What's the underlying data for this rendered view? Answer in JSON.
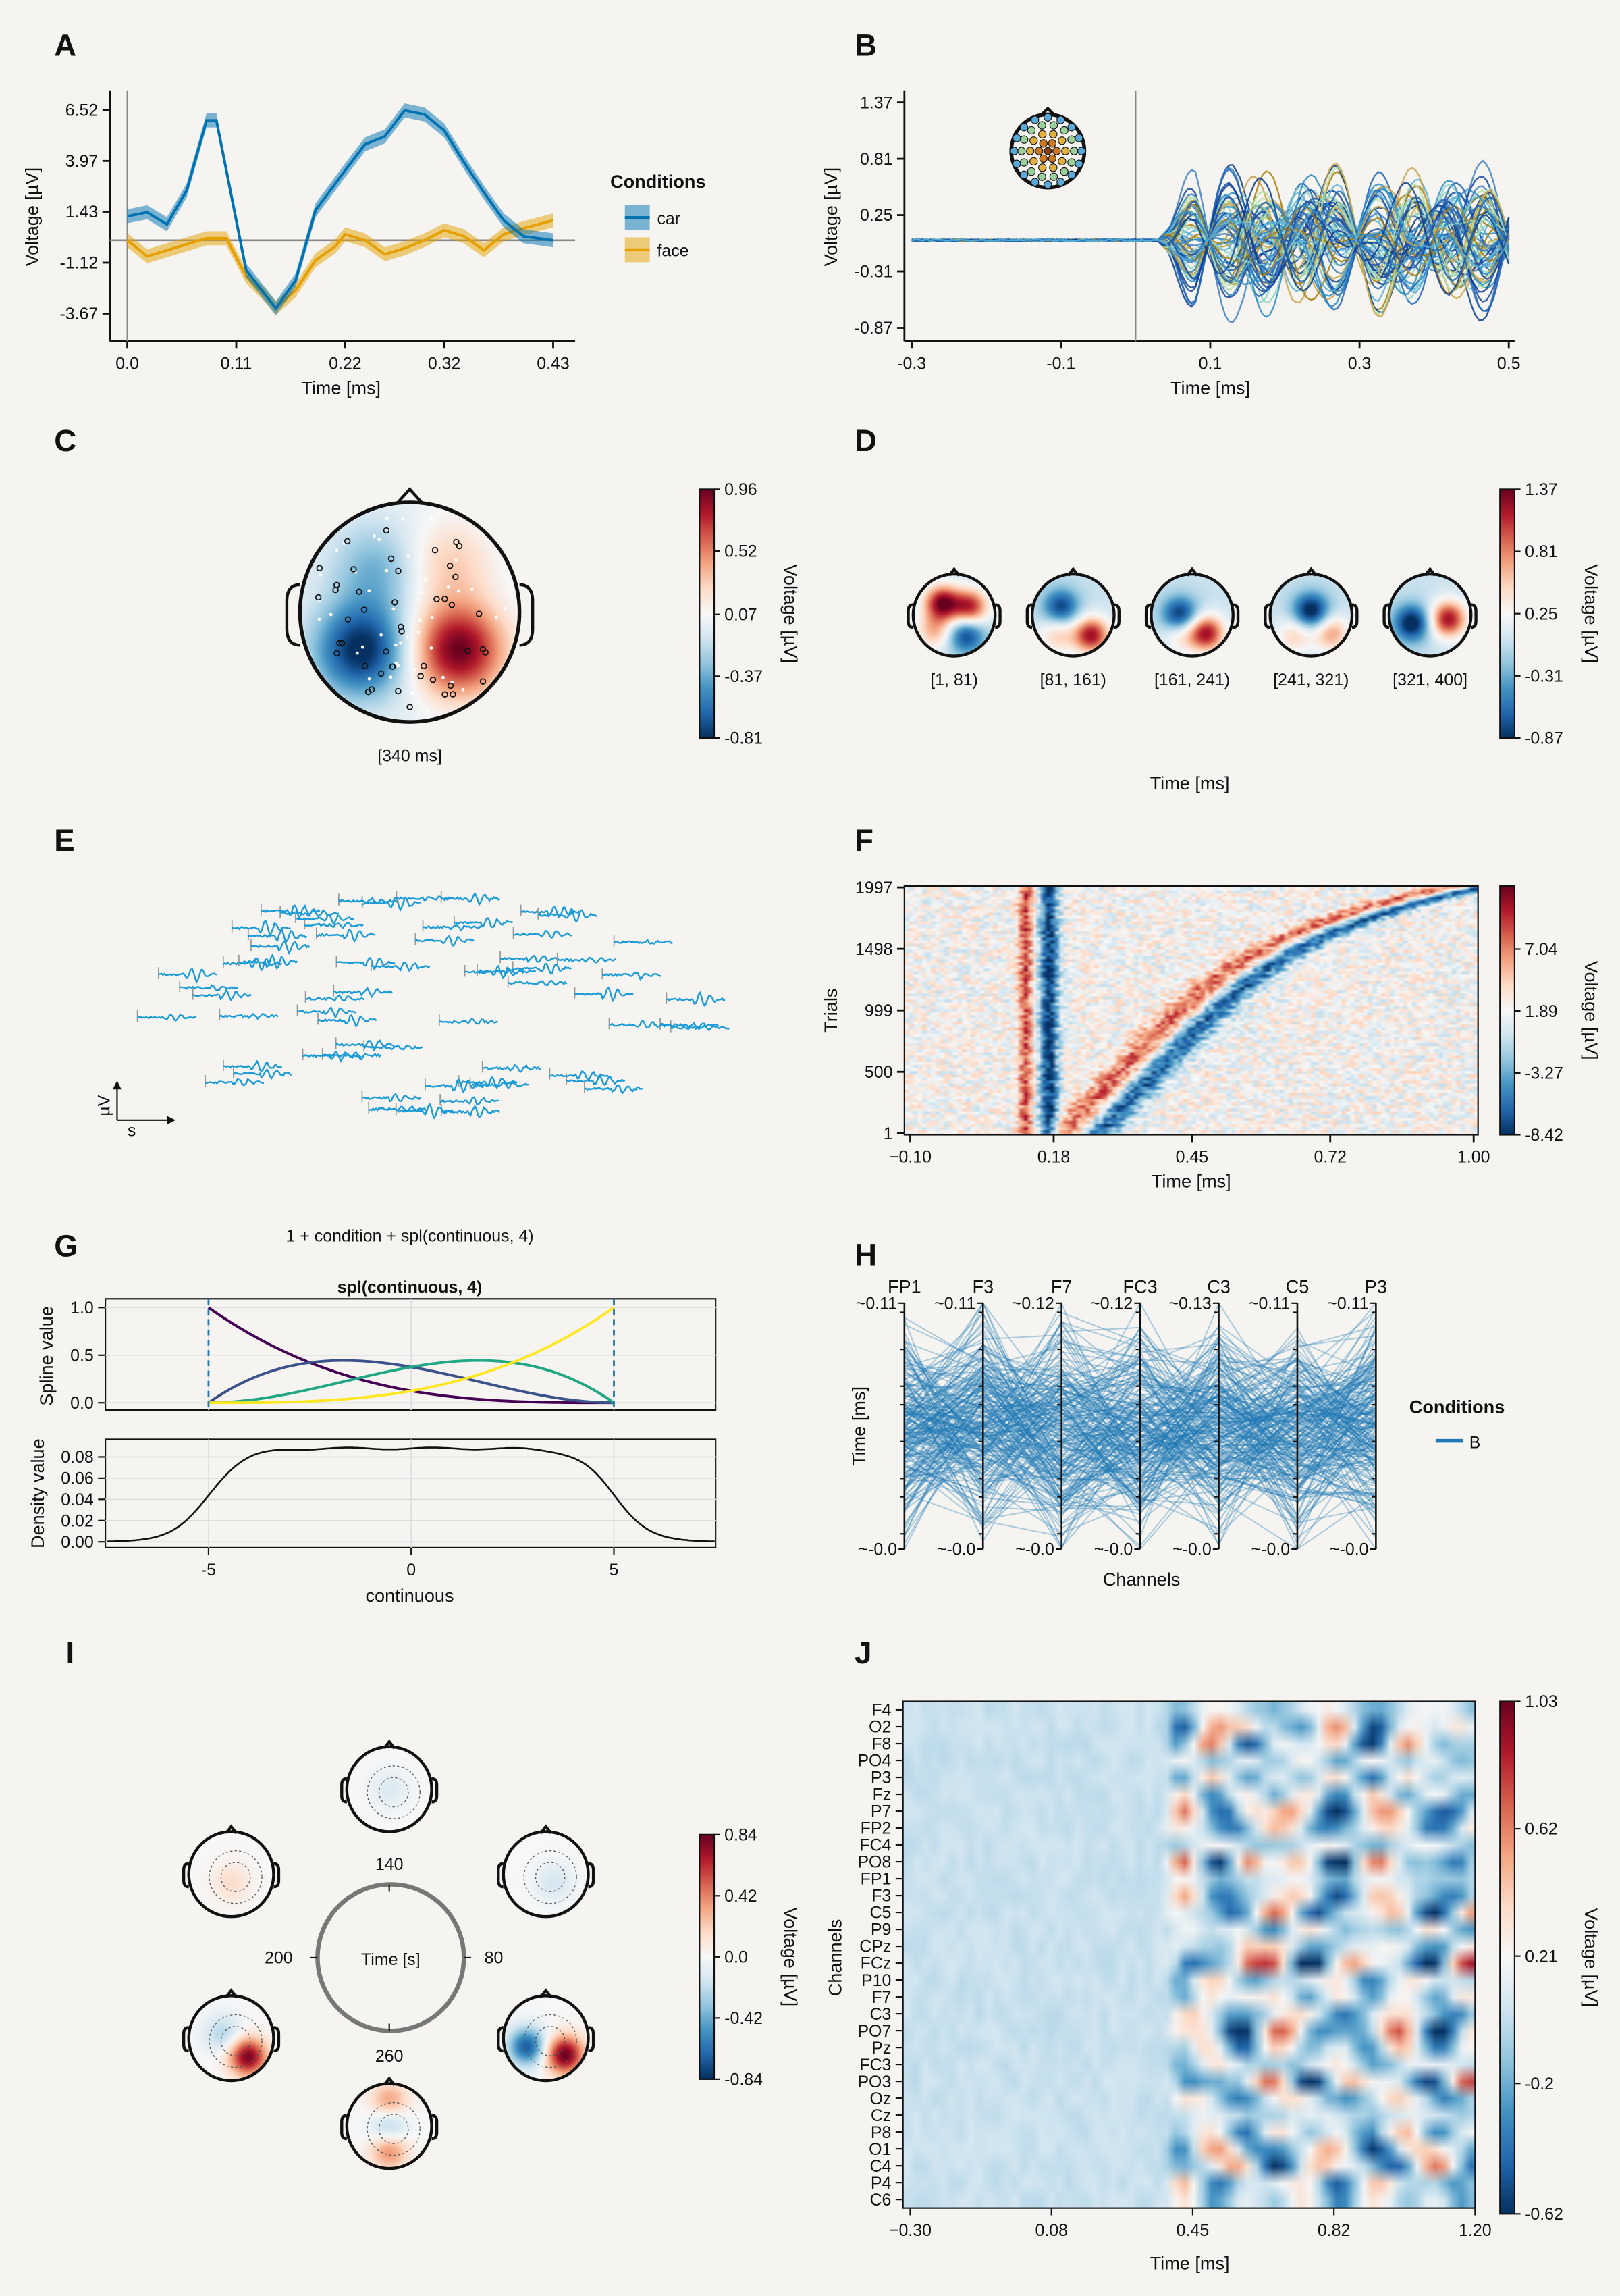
{
  "colors": {
    "car": "#0072b2",
    "face": "#e69f00",
    "background": "#f5f4f0",
    "trace": "#1a9bd7",
    "parallel": "#1f78b4"
  },
  "chart_data": [
    {
      "panel_label": "A",
      "type": "line",
      "xlabel": "Time [ms]",
      "ylabel": "Voltage [µV]",
      "xticks": [
        "0.0",
        "0.11",
        "0.22",
        "0.32",
        "0.43"
      ],
      "yticks": [
        "6.52",
        "3.97",
        "1.43",
        "-1.12",
        "-3.67"
      ],
      "xlim": [
        0,
        0.43
      ],
      "legend_title": "Conditions",
      "legend_position": "right",
      "ci_halfwidth": 0.35,
      "series": [
        {
          "name": "car",
          "color": "#0072b2",
          "x": [
            0,
            0.02,
            0.04,
            0.06,
            0.08,
            0.09,
            0.1,
            0.12,
            0.15,
            0.17,
            0.19,
            0.22,
            0.24,
            0.26,
            0.28,
            0.3,
            0.32,
            0.34,
            0.36,
            0.38,
            0.4,
            0.43
          ],
          "y": [
            1.2,
            1.4,
            0.8,
            2.5,
            6.0,
            6.0,
            3.5,
            -1.5,
            -3.4,
            -2.0,
            1.5,
            3.5,
            4.8,
            5.2,
            6.5,
            6.3,
            5.5,
            3.9,
            2.4,
            1.0,
            0.2,
            0.0
          ]
        },
        {
          "name": "face",
          "color": "#e69f00",
          "x": [
            0,
            0.02,
            0.04,
            0.06,
            0.08,
            0.1,
            0.12,
            0.14,
            0.15,
            0.17,
            0.19,
            0.21,
            0.22,
            0.24,
            0.26,
            0.28,
            0.3,
            0.32,
            0.34,
            0.36,
            0.38,
            0.4,
            0.43
          ],
          "y": [
            0.0,
            -0.8,
            -0.5,
            -0.2,
            0.1,
            0.1,
            -1.8,
            -2.8,
            -3.4,
            -2.5,
            -1.0,
            -0.3,
            0.3,
            0.0,
            -0.7,
            -0.4,
            0.0,
            0.5,
            0.2,
            -0.5,
            0.3,
            0.6,
            1.0
          ]
        }
      ]
    },
    {
      "panel_label": "B",
      "type": "line",
      "xlabel": "Time [ms]",
      "ylabel": "Voltage [µV]",
      "xticks": [
        "-0.3",
        "-0.1",
        "0.1",
        "0.3",
        "0.5"
      ],
      "yticks": [
        "1.37",
        "0.81",
        "0.25",
        "-0.31",
        "-0.87"
      ],
      "xlim": [
        -0.3,
        0.5
      ],
      "series_count": 64,
      "random_seed": 7
    },
    {
      "panel_label": "C",
      "type": "heatmap",
      "time_label": "[340 ms]",
      "colorbar_label": "Voltage [µV]",
      "colorbar_ticks": [
        "0.96",
        "0.52",
        "0.07",
        "-0.37",
        "-0.81"
      ],
      "clim": [
        -0.81,
        0.96
      ],
      "sources": [
        {
          "hx": -0.45,
          "hy": 0.35,
          "amp": -0.85
        },
        {
          "hx": 0.45,
          "hy": 0.35,
          "amp": 0.95
        },
        {
          "hx": -0.3,
          "hy": -0.4,
          "amp": -0.35
        },
        {
          "hx": 0.35,
          "hy": -0.45,
          "amp": 0.3
        }
      ]
    },
    {
      "panel_label": "D",
      "type": "heatmap",
      "xlabel": "Time [ms]",
      "colorbar_label": "Voltage [µV]",
      "colorbar_ticks": [
        "1.37",
        "0.81",
        "0.25",
        "-0.31",
        "-0.87"
      ],
      "clim": [
        -0.87,
        1.37
      ],
      "topos": [
        {
          "label": "[1, 81)",
          "sources": [
            {
              "hx": -0.3,
              "hy": -0.3,
              "amp": 1.3
            },
            {
              "hx": 0.4,
              "hy": -0.2,
              "amp": 1.1
            },
            {
              "hx": 0.3,
              "hy": 0.5,
              "amp": -0.8
            },
            {
              "hx": -0.5,
              "hy": 0.4,
              "amp": 0.6
            }
          ]
        },
        {
          "label": "[81, 161)",
          "sources": [
            {
              "hx": -0.3,
              "hy": -0.2,
              "amp": -0.8
            },
            {
              "hx": 0.45,
              "hy": 0.5,
              "amp": 1.2
            },
            {
              "hx": -0.4,
              "hy": 0.5,
              "amp": 0.5
            }
          ]
        },
        {
          "label": "[161, 241)",
          "sources": [
            {
              "hx": -0.3,
              "hy": 0.0,
              "amp": -0.9
            },
            {
              "hx": 0.35,
              "hy": 0.45,
              "amp": 1.2
            },
            {
              "hx": -0.3,
              "hy": 0.5,
              "amp": 0.4
            }
          ]
        },
        {
          "label": "[241, 321)",
          "sources": [
            {
              "hx": 0.0,
              "hy": -0.1,
              "amp": -1.0
            },
            {
              "hx": 0.5,
              "hy": 0.45,
              "amp": 0.7
            },
            {
              "hx": -0.4,
              "hy": 0.5,
              "amp": 0.5
            }
          ]
        },
        {
          "label": "[321, 400]",
          "sources": [
            {
              "hx": -0.45,
              "hy": 0.2,
              "amp": -1.0
            },
            {
              "hx": 0.45,
              "hy": 0.1,
              "amp": 1.2
            }
          ]
        }
      ]
    },
    {
      "panel_label": "E",
      "type": "line",
      "scale_y_label": "µV",
      "scale_x_label": "s",
      "channel_count": 64,
      "random_seed": 11
    },
    {
      "panel_label": "F",
      "type": "heatmap",
      "xlabel": "Time [ms]",
      "ylabel": "Trials",
      "xticks": [
        "−0.10",
        "0.18",
        "0.45",
        "0.72",
        "1.00"
      ],
      "xlim": [
        -0.1,
        1.0
      ],
      "yticks": [
        "1997",
        "1498",
        "999",
        "500",
        "1"
      ],
      "colorbar_label": "Voltage [µV]",
      "colorbar_ticks": [
        "7.04",
        "1.89",
        "-3.27",
        "-8.42"
      ],
      "clim": [
        -8.42,
        12.3
      ]
    },
    {
      "panel_label": "G",
      "type": "line",
      "title": "1 + condition + spl(continuous, 4)",
      "subtitle": "spl(continuous, 4)",
      "top_ylabel": "Spline value",
      "top_yticks": [
        "1.0",
        "0.5",
        "0.0"
      ],
      "bottom_ylabel": "Density value",
      "bottom_yticks": [
        "0.08",
        "0.06",
        "0.04",
        "0.02",
        "0.00"
      ],
      "xticks": [
        "-5",
        "0",
        "5"
      ],
      "xlabel": "continuous",
      "xlim": [
        -7.5,
        7.5
      ],
      "knots": [
        -5,
        5
      ],
      "spline_colors": [
        "#440154",
        "#3b528b",
        "#21a784",
        "#fde725"
      ],
      "density_plateau": 0.088
    },
    {
      "panel_label": "H",
      "type": "line",
      "channels": [
        "FP1",
        "F3",
        "F7",
        "FC3",
        "C3",
        "C5",
        "P3"
      ],
      "top_ticks": [
        "~0.11",
        "~0.11",
        "~0.12",
        "~0.12",
        "~0.13",
        "~0.11",
        "~0.11"
      ],
      "bottom_ticks": [
        "~-0.0",
        "~-0.0",
        "~-0.0",
        "~-0.0",
        "~-0.0",
        "~-0.0",
        "~-0.0"
      ],
      "ylabel": "Time [ms]",
      "xlabel": "Channels",
      "legend_title": "Conditions",
      "legend_items": [
        "B"
      ],
      "line_count": 220,
      "random_seed": 3
    },
    {
      "panel_label": "I",
      "type": "heatmap",
      "center_label": "Time [s]",
      "angle_labels": [
        "140",
        "80",
        "260",
        "200"
      ],
      "colorbar_label": "Voltage [µV]",
      "colorbar_ticks": [
        "0.84",
        "0.42",
        "0.0",
        "-0.42",
        "-0.84"
      ],
      "clim": [
        -0.84,
        0.84
      ],
      "topos": [
        {
          "sources": [
            {
              "hx": 0.0,
              "hy": 0.0,
              "amp": -0.12
            }
          ]
        },
        {
          "sources": [
            {
              "hx": 0.2,
              "hy": 0.2,
              "amp": -0.15
            }
          ]
        },
        {
          "sources": [
            {
              "hx": -0.45,
              "hy": 0.2,
              "amp": -0.7
            },
            {
              "hx": 0.45,
              "hy": 0.4,
              "amp": 0.84
            }
          ]
        },
        {
          "sources": [
            {
              "hx": 0.0,
              "hy": 0.0,
              "amp": -0.3
            },
            {
              "hx": 0.0,
              "hy": 0.6,
              "amp": 0.4
            },
            {
              "hx": 0.0,
              "hy": -0.6,
              "amp": 0.35
            }
          ]
        },
        {
          "sources": [
            {
              "hx": 0.4,
              "hy": 0.45,
              "amp": 0.8
            },
            {
              "hx": -0.2,
              "hy": -0.1,
              "amp": -0.25
            }
          ]
        },
        {
          "sources": [
            {
              "hx": 0.0,
              "hy": 0.2,
              "amp": 0.15
            }
          ]
        }
      ]
    },
    {
      "panel_label": "J",
      "type": "heatmap",
      "channels": [
        "F4",
        "O2",
        "F8",
        "PO4",
        "P3",
        "Fz",
        "P7",
        "FP2",
        "FC4",
        "PO8",
        "FP1",
        "F3",
        "C5",
        "P9",
        "CPz",
        "FCz",
        "P10",
        "F7",
        "C3",
        "PO7",
        "Pz",
        "FC3",
        "PO3",
        "Oz",
        "Cz",
        "P8",
        "O1",
        "C4",
        "P4",
        "C6"
      ],
      "xticks": [
        "−0.30",
        "0.08",
        "0.45",
        "0.82",
        "1.20"
      ],
      "xlim": [
        -0.3,
        1.2
      ],
      "xlabel": "Time [ms]",
      "ylabel": "Channels",
      "colorbar_label": "Voltage [µV]",
      "colorbar_ticks": [
        "1.03",
        "0.62",
        "0.21",
        "-0.2",
        "-0.62"
      ],
      "clim": [
        -0.62,
        1.03
      ],
      "random_seed": 5
    }
  ]
}
